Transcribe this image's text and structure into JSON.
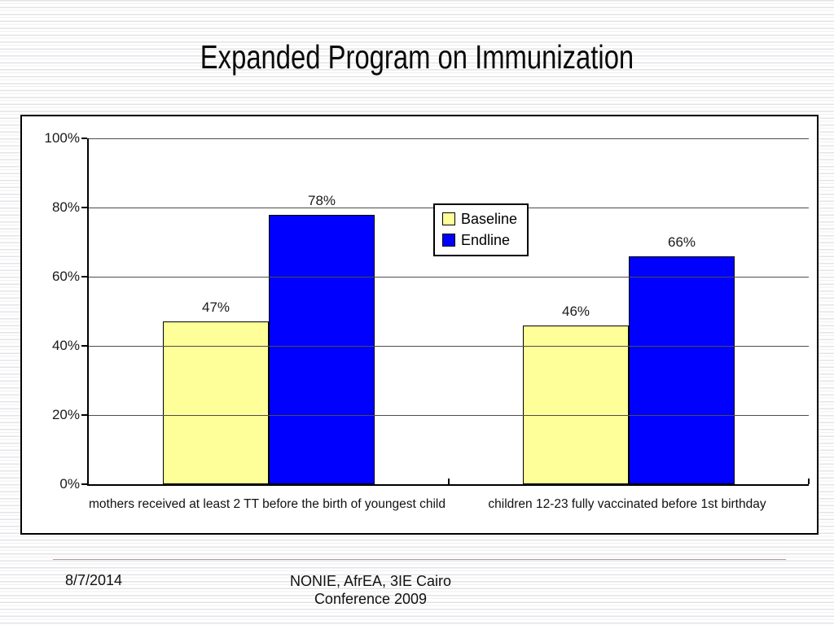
{
  "slide": {
    "title": "Expanded Program on Immunization",
    "footer": {
      "date": "8/7/2014",
      "conference_line1": "NONIE, AfrEA, 3IE Cairo",
      "conference_line2": "Conference 2009"
    }
  },
  "colors": {
    "baseline_fill": "#FFFF99",
    "endline_fill": "#0000FF",
    "bar_border": "#000000",
    "gridline": "#4d4d4d",
    "axis": "#000000",
    "footer_divider": "#b59a9a"
  },
  "chart_data": {
    "type": "bar",
    "title": "",
    "categories": [
      "mothers received at least 2 TT before the birth of youngest child",
      "children 12-23 fully vaccinated before 1st birthday"
    ],
    "series": [
      {
        "name": "Baseline",
        "color": "#FFFF99",
        "values": [
          47,
          46
        ],
        "labels": [
          "47%",
          "46%"
        ]
      },
      {
        "name": "Endline",
        "color": "#0000FF",
        "values": [
          78,
          66
        ],
        "labels": [
          "78%",
          "66%"
        ]
      }
    ],
    "y_axis": {
      "min": 0,
      "max": 100,
      "tick_values": [
        0,
        20,
        40,
        60,
        80,
        100
      ],
      "tick_labels": [
        "0%",
        "20%",
        "40%",
        "60%",
        "80%",
        "100%"
      ]
    },
    "grid": true,
    "legend": {
      "position": "inside-top-center",
      "entries": [
        "Baseline",
        "Endline"
      ]
    }
  }
}
